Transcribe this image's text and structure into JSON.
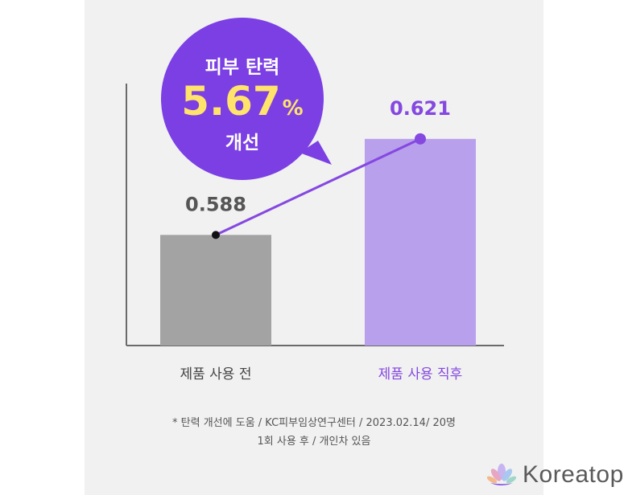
{
  "chart_data": {
    "type": "bar",
    "categories": [
      "제품 사용 전",
      "제품 사용 직후"
    ],
    "values": [
      0.588,
      0.621
    ],
    "value_labels": [
      "0.588",
      "0.621"
    ],
    "ylim": [
      0.55,
      0.64
    ],
    "grid": false,
    "bar_colors": [
      "#a3a3a3",
      "#b8a0ec"
    ],
    "line_color": "#8548e0",
    "category_label_colors": [
      "#444444",
      "#8548e0"
    ]
  },
  "callout": {
    "line1": "피부 탄력",
    "number": "5.67",
    "unit": "%",
    "line3": "개선",
    "bubble_color": "#7b3fe4",
    "number_color": "#ffe36b"
  },
  "footnote": {
    "line1": "* 탄력 개선에 도움 / KC피부임상연구센터 / 2023.02.14/ 20명",
    "line2": "1회 사용 후 / 개인차 있음"
  },
  "brand": {
    "name": "Koreatop",
    "icon": "lotus-icon"
  }
}
